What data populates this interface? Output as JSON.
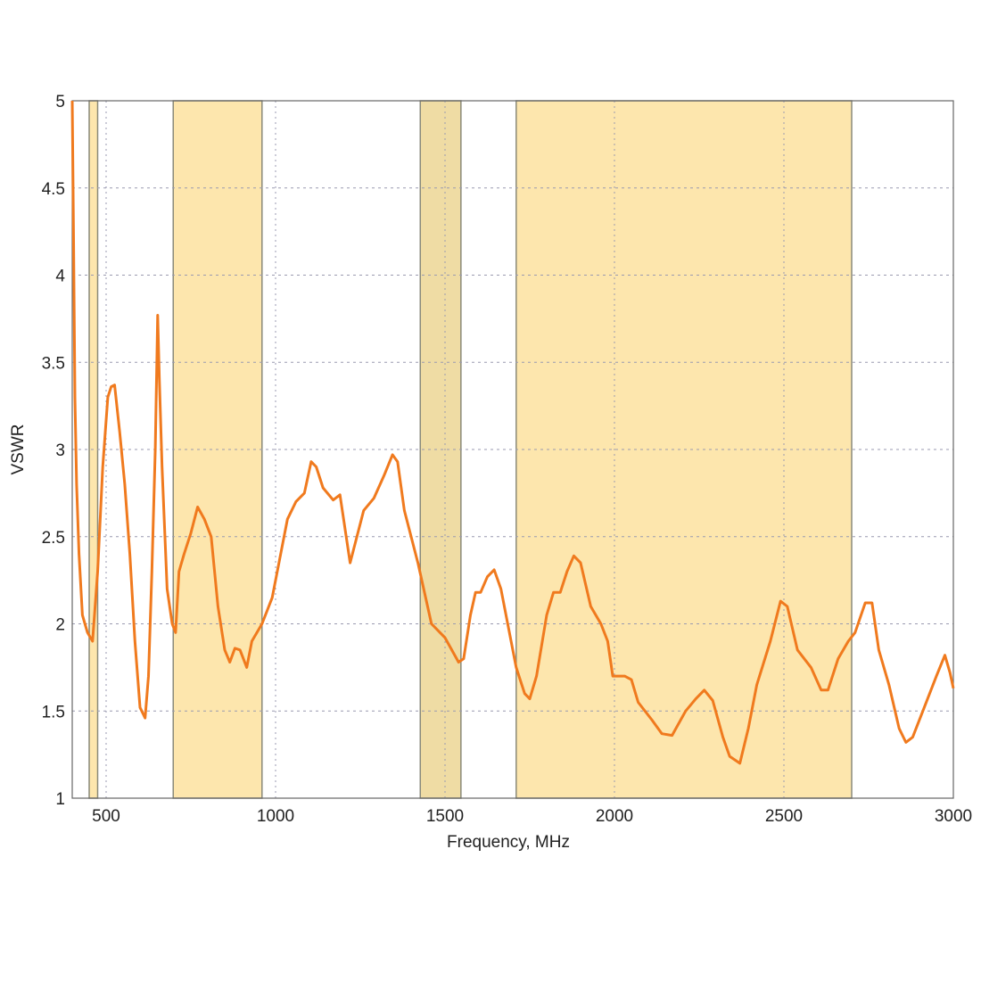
{
  "chart_data": {
    "type": "line",
    "title": "",
    "xlabel": "Frequency, MHz",
    "ylabel": "VSWR",
    "xlim": [
      400,
      3000
    ],
    "ylim": [
      1,
      5
    ],
    "xticks": [
      500,
      1000,
      1500,
      2000,
      2500,
      3000
    ],
    "yticks": [
      1,
      1.5,
      2,
      2.5,
      3,
      3.5,
      4,
      4.5,
      5
    ],
    "ytick_labels": [
      "1",
      "1.5",
      "2",
      "2.5",
      "3",
      "3.5",
      "4",
      "4.5",
      "5"
    ],
    "grid": true,
    "line_color": "#f07a1e",
    "shaded_bands": [
      {
        "from": 450,
        "to": 475,
        "color": "#fde6ad"
      },
      {
        "from": 698,
        "to": 960,
        "color": "#fde6ad"
      },
      {
        "from": 1427,
        "to": 1547,
        "color": "#efdca4"
      },
      {
        "from": 1710,
        "to": 2700,
        "color": "#fde6ad"
      }
    ],
    "series": [
      {
        "x": [
          400,
          404,
          408,
          413,
          420,
          430,
          445,
          460,
          475,
          490,
          505,
          515,
          525,
          540,
          555,
          570,
          585,
          600,
          615,
          625,
          635,
          645,
          652,
          657,
          665,
          680,
          695,
          705,
          715,
          730,
          750,
          770,
          790,
          810,
          830,
          850,
          865,
          880,
          895,
          915,
          930,
          960,
          990,
          1010,
          1035,
          1060,
          1085,
          1105,
          1120,
          1140,
          1170,
          1190,
          1220,
          1240,
          1260,
          1290,
          1320,
          1345,
          1360,
          1380,
          1420,
          1460,
          1500,
          1540,
          1555,
          1575,
          1590,
          1605,
          1625,
          1645,
          1665,
          1690,
          1710,
          1735,
          1750,
          1770,
          1800,
          1820,
          1840,
          1860,
          1880,
          1900,
          1930,
          1960,
          1980,
          1995,
          2030,
          2050,
          2070,
          2110,
          2140,
          2170,
          2210,
          2240,
          2265,
          2290,
          2320,
          2340,
          2370,
          2395,
          2420,
          2460,
          2490,
          2510,
          2540,
          2580,
          2610,
          2630,
          2660,
          2690,
          2710,
          2740,
          2760,
          2780,
          2810,
          2840,
          2860,
          2880,
          2910,
          2950,
          2975,
          2990,
          3000
        ],
        "y": [
          5.0,
          4.2,
          3.3,
          2.8,
          2.4,
          2.05,
          1.95,
          1.9,
          2.3,
          2.9,
          3.3,
          3.36,
          3.37,
          3.1,
          2.8,
          2.4,
          1.9,
          1.52,
          1.46,
          1.7,
          2.3,
          3.0,
          3.77,
          3.4,
          2.9,
          2.2,
          2.0,
          1.95,
          2.3,
          2.4,
          2.52,
          2.67,
          2.6,
          2.5,
          2.1,
          1.85,
          1.78,
          1.86,
          1.85,
          1.75,
          1.9,
          2.0,
          2.15,
          2.35,
          2.6,
          2.7,
          2.75,
          2.93,
          2.9,
          2.78,
          2.71,
          2.74,
          2.35,
          2.5,
          2.65,
          2.72,
          2.85,
          2.97,
          2.93,
          2.65,
          2.35,
          2.0,
          1.92,
          1.78,
          1.8,
          2.05,
          2.18,
          2.18,
          2.27,
          2.31,
          2.2,
          1.95,
          1.75,
          1.6,
          1.57,
          1.7,
          2.05,
          2.18,
          2.18,
          2.3,
          2.39,
          2.35,
          2.1,
          2.0,
          1.9,
          1.7,
          1.7,
          1.68,
          1.55,
          1.45,
          1.37,
          1.36,
          1.5,
          1.57,
          1.62,
          1.56,
          1.35,
          1.24,
          1.2,
          1.4,
          1.65,
          1.9,
          2.13,
          2.1,
          1.85,
          1.75,
          1.62,
          1.62,
          1.8,
          1.9,
          1.95,
          2.12,
          2.12,
          1.85,
          1.65,
          1.4,
          1.32,
          1.35,
          1.5,
          1.7,
          1.82,
          1.72,
          1.63
        ]
      }
    ]
  }
}
